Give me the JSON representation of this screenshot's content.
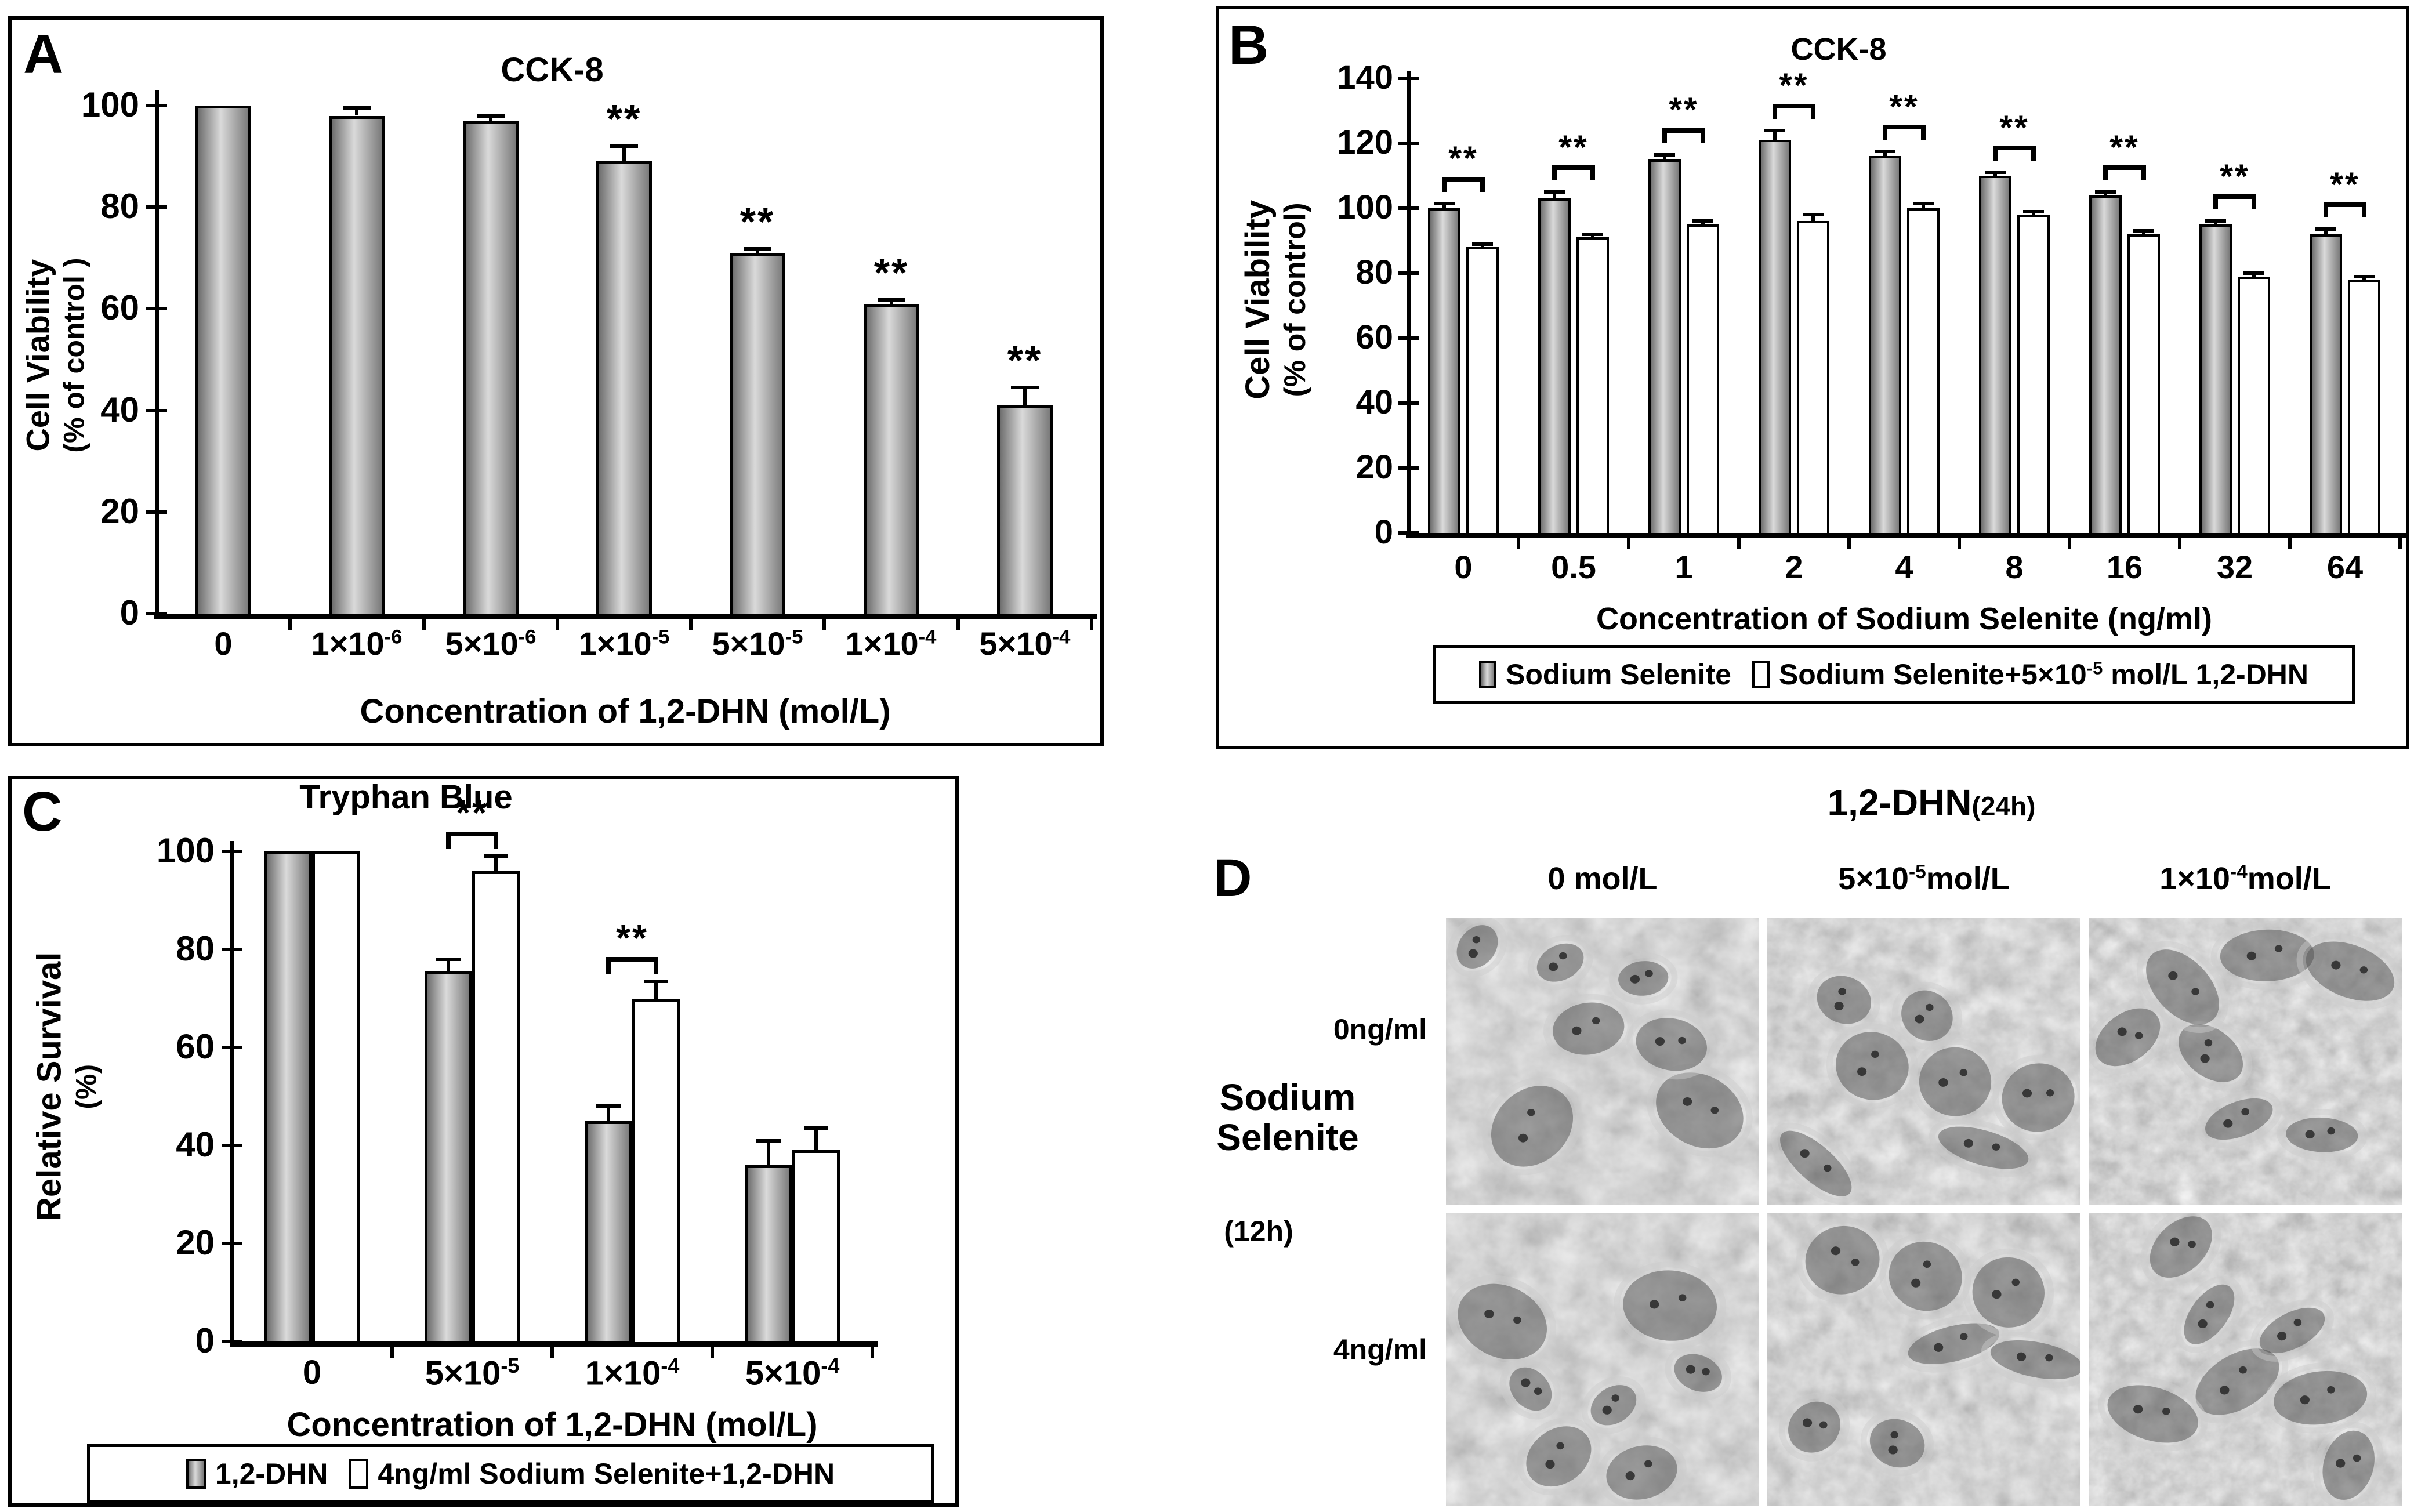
{
  "colors": {
    "ink": "#000000",
    "background": "#ffffff",
    "bar_gray_dark": "#6e6e6e",
    "bar_gray_light": "#dadada",
    "bar_white": "#ffffff"
  },
  "panels": {
    "A": "A",
    "B": "B",
    "C": "C",
    "D": "D"
  },
  "sig_symbol": "**",
  "chart_data": [
    {
      "id": "A",
      "type": "bar",
      "title": "CCK-8",
      "ylabel": "Cell Viability (% of control )",
      "ylabel_lines": [
        "Cell Viability",
        "(% of control )"
      ],
      "xlabel": "Concentration of 1,2-DHN (mol/L)",
      "categories": [
        "0",
        "1×10^-6",
        "5×10^-6",
        "1×10^-5",
        "5×10^-5",
        "1×10^-4",
        "5×10^-4"
      ],
      "values": [
        100,
        98,
        97,
        89,
        71,
        61,
        41
      ],
      "errors": [
        0,
        1.5,
        1,
        3,
        0.8,
        0.8,
        3.5
      ],
      "significance": [
        "",
        "",
        "",
        "**",
        "**",
        "**",
        "**"
      ],
      "bar_fill": "gray",
      "ylim": [
        0,
        100
      ],
      "yticks": [
        0,
        20,
        40,
        60,
        80,
        100
      ],
      "grid": false,
      "legend_position": "none"
    },
    {
      "id": "B",
      "type": "grouped-bar",
      "title": "CCK-8",
      "ylabel": "Cell Viability (% of control)",
      "ylabel_lines": [
        "Cell Viability",
        "(% of control)"
      ],
      "xlabel": "Concentration of Sodium Selenite (ng/ml)",
      "categories": [
        "0",
        "0.5",
        "1",
        "2",
        "4",
        "8",
        "16",
        "32",
        "64"
      ],
      "series": [
        {
          "name": "Sodium Selenite",
          "fill": "gray",
          "values": [
            100,
            103,
            115,
            121,
            116,
            110,
            104,
            95,
            92
          ],
          "errors": [
            1.5,
            2,
            1.5,
            3,
            1.5,
            1,
            1,
            1,
            1.5
          ]
        },
        {
          "name": "Sodium Selenite+5×10^-5 mol/L 1,2-DHN",
          "fill": "white",
          "values": [
            88,
            91,
            95,
            96,
            100,
            98,
            92,
            79,
            78
          ],
          "errors": [
            1,
            1,
            1,
            2,
            1.5,
            1,
            1,
            1,
            1
          ]
        }
      ],
      "significance": [
        "**",
        "**",
        "**",
        "**",
        "**",
        "**",
        "**",
        "**",
        "**"
      ],
      "ylim": [
        0,
        140
      ],
      "yticks": [
        0,
        20,
        40,
        60,
        80,
        100,
        120,
        140
      ],
      "grid": false,
      "legend_position": "bottom"
    },
    {
      "id": "C",
      "type": "grouped-bar",
      "title": "Tryphan Blue",
      "ylabel": "Relative Survival (%)",
      "ylabel_lines": [
        "Relative Survival",
        "(%)"
      ],
      "xlabel": "Concentration of 1,2-DHN (mol/L)",
      "categories": [
        "0",
        "5×10^-5",
        "1×10^-4",
        "5×10^-4"
      ],
      "series": [
        {
          "name": "1,2-DHN",
          "fill": "gray",
          "values": [
            100,
            75.5,
            45,
            36
          ],
          "errors": [
            0,
            2.5,
            3,
            5
          ]
        },
        {
          "name": "4ng/ml Sodium Selenite+1,2-DHN",
          "fill": "white",
          "values": [
            100,
            96,
            70,
            39
          ],
          "errors": [
            0,
            3,
            3.5,
            4.5
          ]
        }
      ],
      "significance": [
        "",
        "**",
        "**",
        ""
      ],
      "ylim": [
        0,
        100
      ],
      "yticks": [
        0,
        20,
        40,
        60,
        80,
        100
      ],
      "grid": false,
      "legend_position": "bottom"
    }
  ],
  "panelD": {
    "title": "1,2-DHN",
    "title_suffix": "(24h)",
    "col_labels": [
      "0 mol/L",
      "5×10^-5mol/L",
      "1×10^-4mol/L"
    ],
    "row_labels": [
      "0ng/ml",
      "4ng/ml"
    ],
    "side_label_lines": [
      "Sodium",
      "Selenite"
    ],
    "side_label_sub": "(12h)",
    "images": [
      {
        "row": "0ng/ml",
        "col": "0 mol/L"
      },
      {
        "row": "0ng/ml",
        "col": "5×10^-5mol/L"
      },
      {
        "row": "0ng/ml",
        "col": "1×10^-4mol/L"
      },
      {
        "row": "4ng/ml",
        "col": "0 mol/L"
      },
      {
        "row": "4ng/ml",
        "col": "5×10^-5mol/L"
      },
      {
        "row": "4ng/ml",
        "col": "1×10^-4mol/L"
      }
    ]
  }
}
